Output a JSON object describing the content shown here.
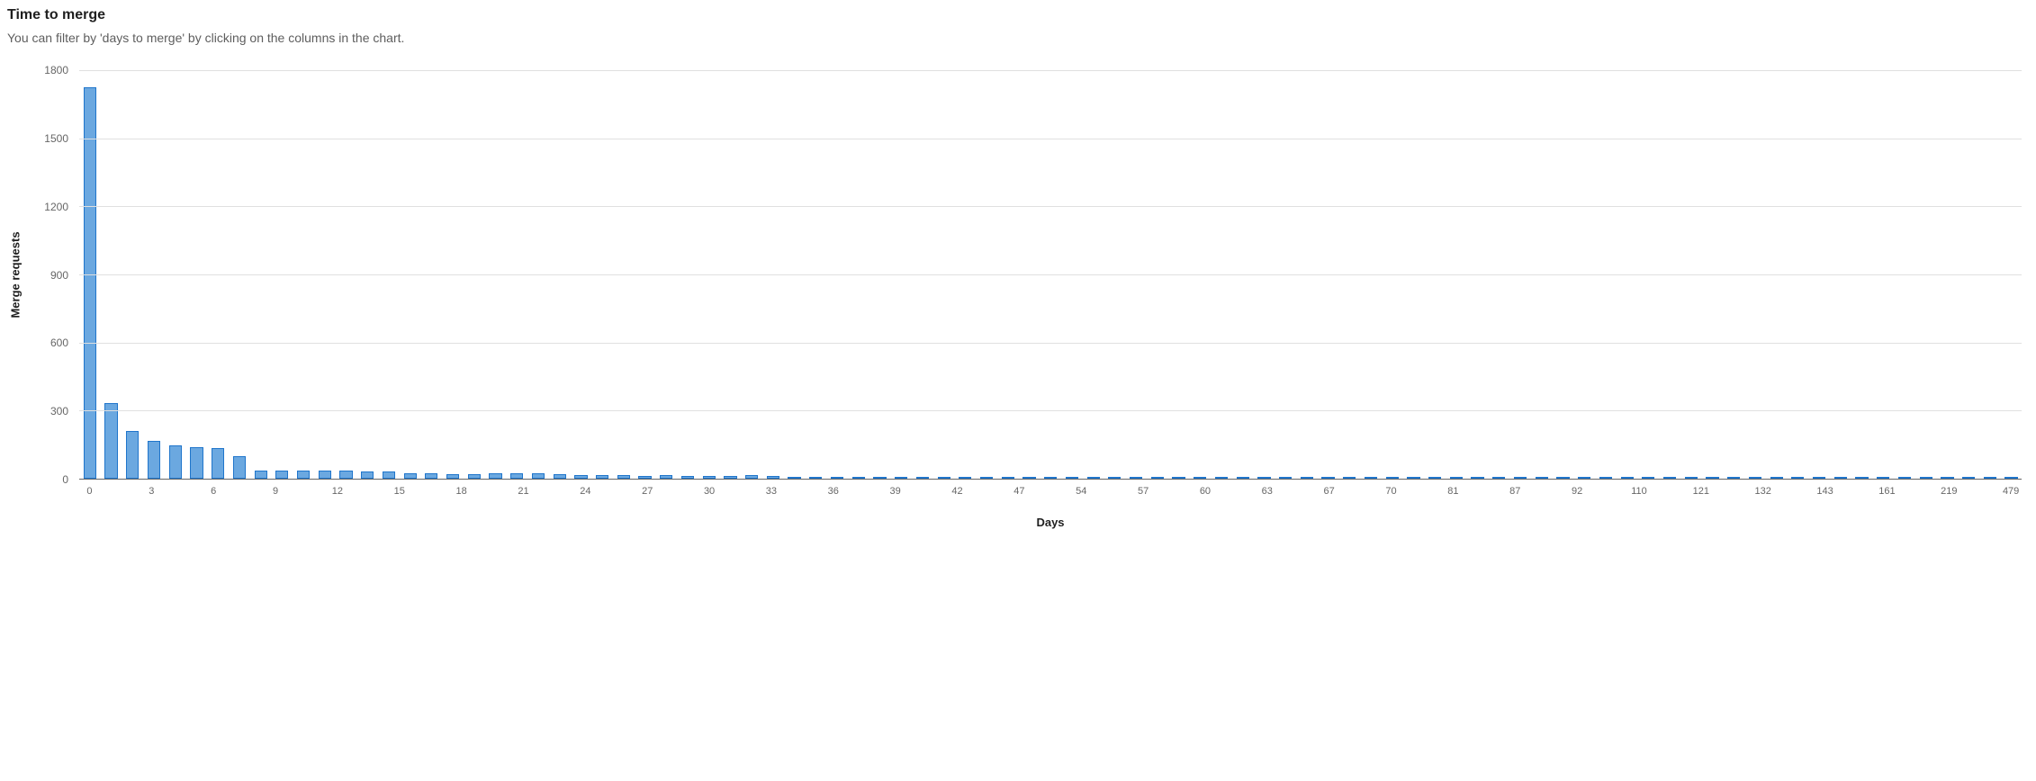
{
  "header": {
    "title": "Time to merge",
    "subtitle": "You can filter by 'days to merge' by clicking on the columns in the chart."
  },
  "chart": {
    "type": "bar",
    "ylabel": "Merge requests",
    "xlabel": "Days",
    "ylim": [
      0,
      1800
    ],
    "ytick_step": 300,
    "yticks": [
      0,
      300,
      600,
      900,
      1200,
      1500,
      1800
    ],
    "bar_fill_color": "#6ba8e0",
    "bar_border_color": "#1f75cb",
    "background_color": "#ffffff",
    "grid_color": "#e0e0e0",
    "axis_color": "#666666",
    "label_fontsize": 13,
    "tick_fontsize": 12,
    "xtick_labels": [
      "0",
      "",
      "",
      "3",
      "",
      "",
      "6",
      "",
      "",
      "9",
      "",
      "",
      "12",
      "",
      "",
      "15",
      "",
      "",
      "18",
      "",
      "",
      "21",
      "",
      "",
      "24",
      "",
      "",
      "27",
      "",
      "",
      "30",
      "",
      "",
      "33",
      "",
      "",
      "36",
      "",
      "",
      "39",
      "",
      "",
      "42",
      "",
      "",
      "47",
      "",
      "",
      "54",
      "",
      "",
      "57",
      "",
      "",
      "60",
      "",
      "",
      "63",
      "",
      "",
      "67",
      "",
      "",
      "70",
      "",
      "",
      "81",
      "",
      "",
      "87",
      "",
      "",
      "92",
      "",
      "",
      "110",
      "",
      "",
      "121",
      "",
      "",
      "132",
      "",
      "",
      "143",
      "",
      "",
      "161",
      "",
      "",
      "219",
      "",
      "",
      "479"
    ],
    "values": [
      1725,
      335,
      210,
      165,
      145,
      140,
      135,
      100,
      35,
      35,
      35,
      35,
      35,
      30,
      30,
      25,
      25,
      18,
      18,
      22,
      22,
      25,
      18,
      15,
      14,
      14,
      13,
      15,
      10,
      10,
      10,
      14,
      10,
      8,
      8,
      6,
      6,
      8,
      6,
      5,
      5,
      5,
      5,
      5,
      5,
      6,
      6,
      5,
      5,
      5,
      5,
      5,
      5,
      5,
      5,
      5,
      5,
      5,
      5,
      5,
      5,
      5,
      5,
      5,
      5,
      5,
      5,
      5,
      5,
      5,
      5,
      5,
      5,
      5,
      5,
      5,
      5,
      5,
      5,
      5,
      5,
      5,
      5,
      5,
      5,
      5,
      5,
      5,
      5,
      5,
      5
    ]
  }
}
